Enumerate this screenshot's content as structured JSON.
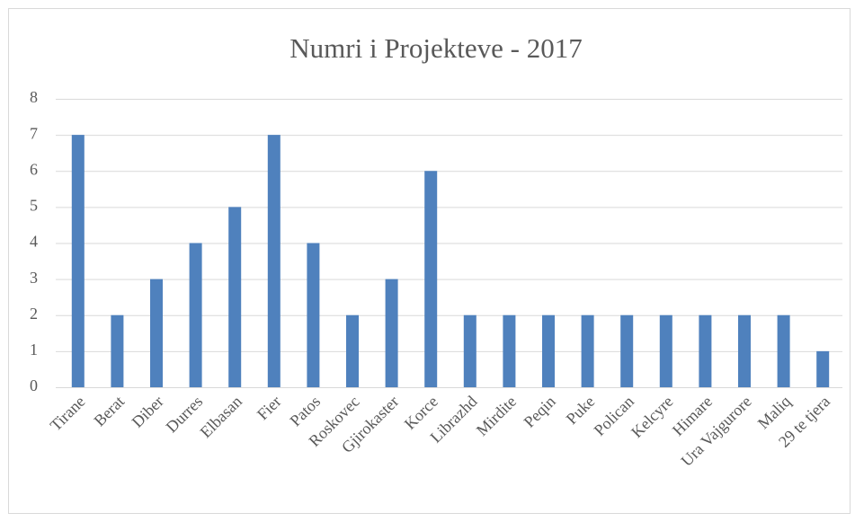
{
  "chart_data": {
    "type": "bar",
    "title": "Numri  i Projekteve - 2017",
    "categories": [
      "Tirane",
      "Berat",
      "Diber",
      "Durres",
      "Elbasan",
      "Fier",
      "Patos",
      "Roskovec",
      "Gjirokaster",
      "Korce",
      "Librazhd",
      "Mirdite",
      "Peqin",
      "Puke",
      "Polican",
      "Kelcyre",
      "Himare",
      "Ura Vajgurore",
      "Maliq",
      "29 te tjera"
    ],
    "values": [
      7,
      2,
      3,
      4,
      5,
      7,
      4,
      2,
      3,
      6,
      2,
      2,
      2,
      2,
      2,
      2,
      2,
      2,
      2,
      1
    ],
    "color": "#4f81bd",
    "ylim": [
      0,
      8
    ],
    "yticks": [
      0,
      1,
      2,
      3,
      4,
      5,
      6,
      7,
      8
    ],
    "grid": true
  }
}
